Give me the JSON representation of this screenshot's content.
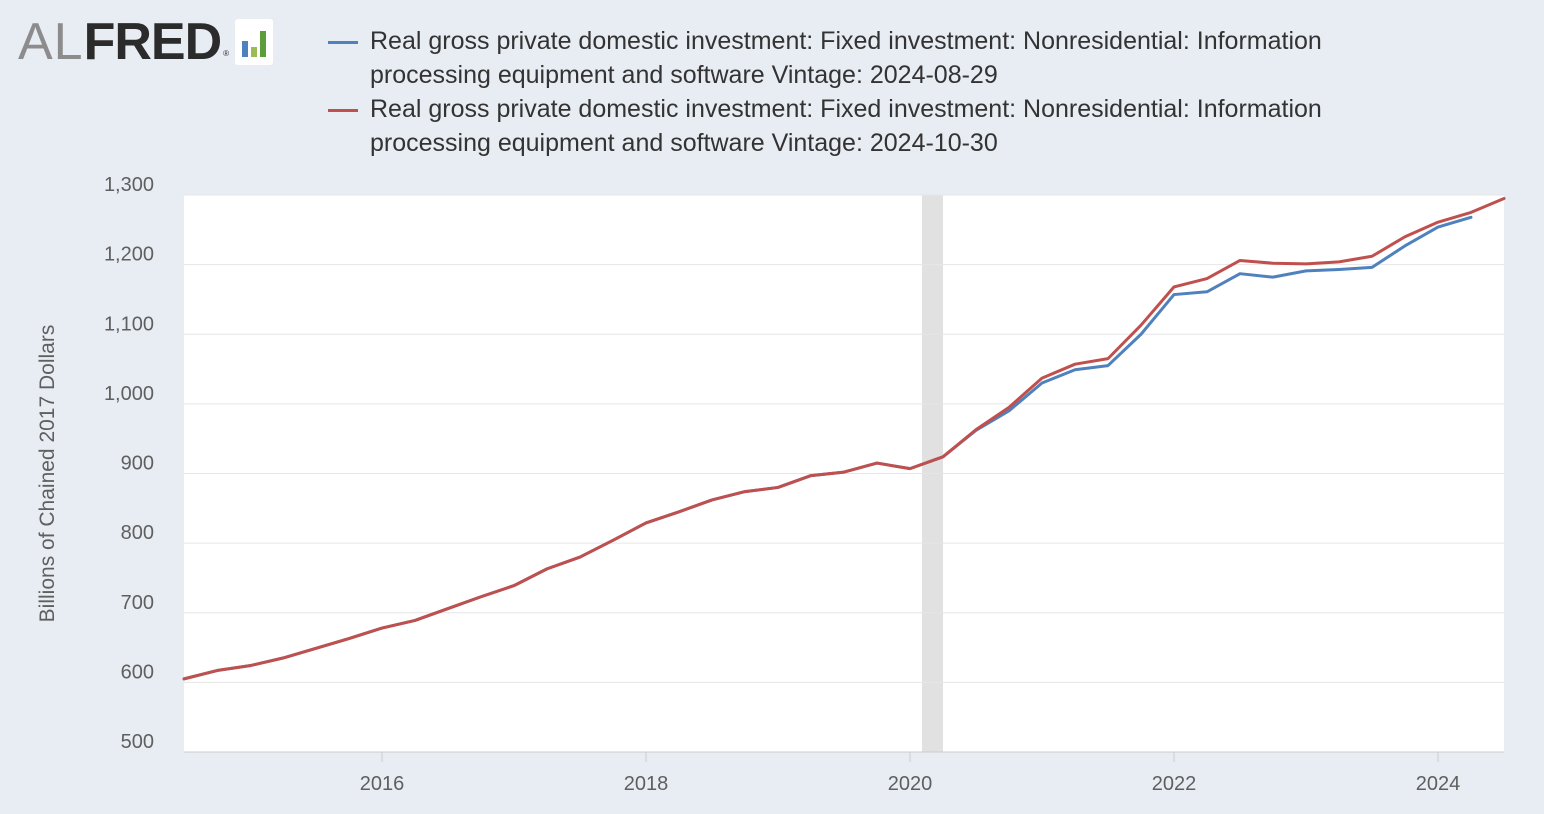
{
  "logo": {
    "al": "AL",
    "fred": "FRED",
    "reg": "®"
  },
  "colors": {
    "series1": "#4f81bd",
    "series2": "#c0504d",
    "recession": "#e1e1e1",
    "grid": "#e6e6e6",
    "plot_bg": "#ffffff"
  },
  "chart_data": {
    "type": "line",
    "ylabel": "Billions of Chained 2017 Dollars",
    "ylim": [
      500,
      1300
    ],
    "yticks": [
      500,
      600,
      700,
      800,
      900,
      1000,
      1100,
      1200,
      1300
    ],
    "ytick_labels": [
      "500",
      "600",
      "700",
      "800",
      "900",
      "1,000",
      "1,100",
      "1,200",
      "1,300"
    ],
    "xlim": [
      2014.5,
      2024.5
    ],
    "xticks": [
      2016,
      2018,
      2020,
      2022,
      2024
    ],
    "xtick_labels": [
      "2016",
      "2018",
      "2020",
      "2022",
      "2024"
    ],
    "recession": [
      2020.0,
      2020.25
    ],
    "x": [
      2014.5,
      2014.75,
      2015.0,
      2015.25,
      2015.5,
      2015.75,
      2016.0,
      2016.25,
      2016.5,
      2016.75,
      2017.0,
      2017.25,
      2017.5,
      2017.75,
      2018.0,
      2018.25,
      2018.5,
      2018.75,
      2019.0,
      2019.25,
      2019.5,
      2019.75,
      2020.0,
      2020.25,
      2020.5,
      2020.75,
      2021.0,
      2021.25,
      2021.5,
      2021.75,
      2022.0,
      2022.25,
      2022.5,
      2022.75,
      2023.0,
      2023.25,
      2023.5,
      2023.75,
      2024.0,
      2024.25,
      2024.5
    ],
    "series": [
      {
        "name": "Real gross private domestic investment: Fixed investment: Nonresidential: Information processing equipment and software Vintage: 2024-08-29",
        "values": [
          605,
          617,
          624,
          635,
          649,
          663,
          678,
          689,
          706,
          723,
          739,
          763,
          780,
          804,
          829,
          845,
          862,
          874,
          880,
          897,
          902,
          915,
          907,
          924,
          962,
          990,
          1030,
          1049,
          1055,
          1100,
          1157,
          1161,
          1187,
          1182,
          1191,
          1193,
          1196,
          1227,
          1254,
          1268,
          null
        ]
      },
      {
        "name": "Real gross private domestic investment: Fixed investment: Nonresidential: Information processing equipment and software Vintage: 2024-10-30",
        "values": [
          605,
          617,
          624,
          635,
          649,
          663,
          678,
          689,
          706,
          723,
          739,
          763,
          780,
          804,
          829,
          845,
          862,
          874,
          880,
          897,
          902,
          915,
          907,
          924,
          963,
          995,
          1037,
          1057,
          1065,
          1113,
          1168,
          1180,
          1206,
          1202,
          1201,
          1204,
          1212,
          1240,
          1261,
          1275,
          1295
        ]
      }
    ]
  },
  "legend": [
    {
      "line1": "Real gross private domestic investment: Fixed investment: Nonresidential: Information",
      "line2": "processing equipment and software Vintage: 2024-08-29"
    },
    {
      "line1": "Real gross private domestic investment: Fixed investment: Nonresidential: Information",
      "line2": "processing equipment and software Vintage: 2024-10-30"
    }
  ]
}
